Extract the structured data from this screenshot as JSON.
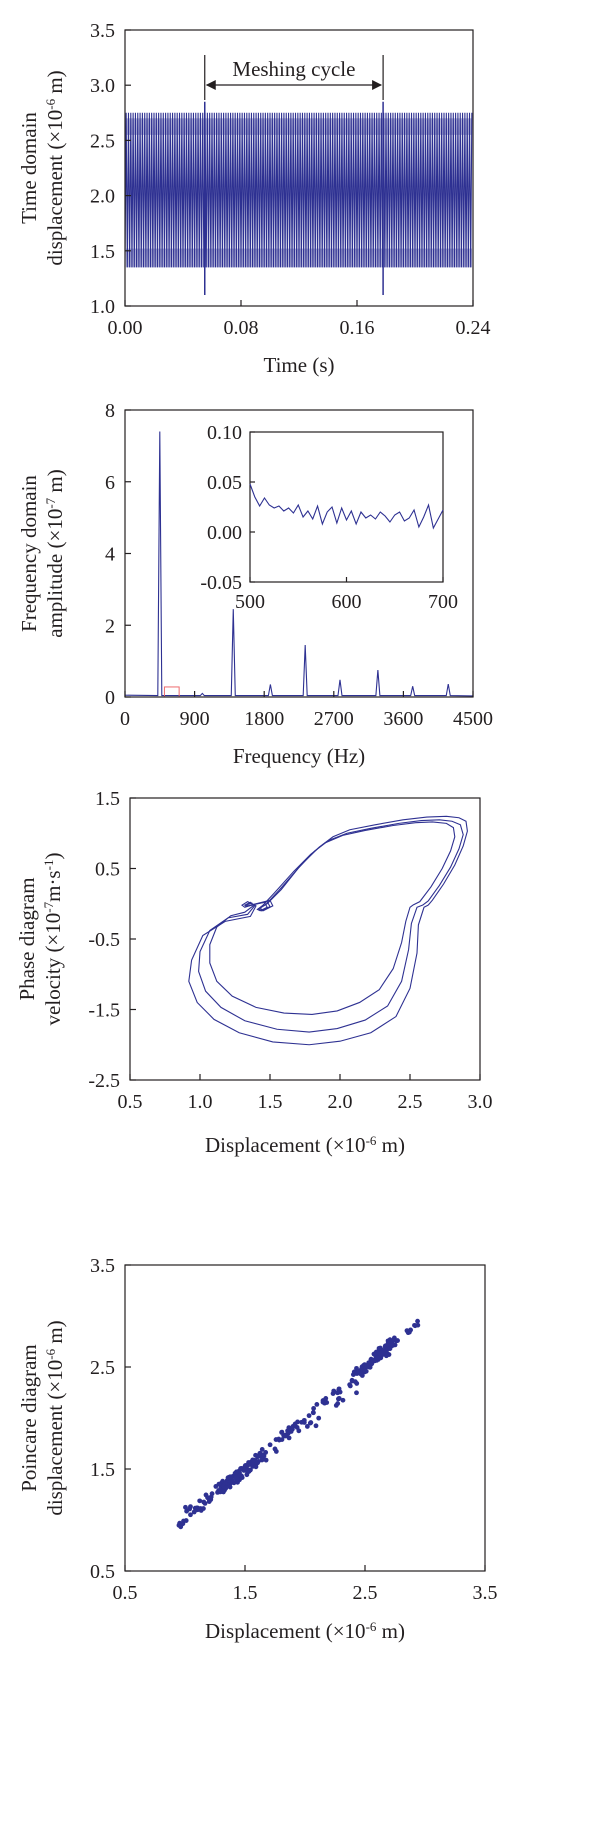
{
  "chart_data": [
    {
      "type": "line",
      "xlabel": "Time (s)",
      "ylabel_line1": "Time domain",
      "ylabel_line2": "displacement (×10",
      "ylabel_exp": "-6",
      "ylabel_tail": " m)",
      "xlim": [
        0.0,
        0.24
      ],
      "ylim": [
        1.0,
        3.5
      ],
      "xticks": [
        "0.00",
        "0.08",
        "0.16",
        "0.24"
      ],
      "yticks": [
        "1.0",
        "1.5",
        "2.0",
        "2.5",
        "3.0",
        "3.5"
      ],
      "annotation": "Meshing cycle",
      "annotation_range": [
        0.055,
        0.178
      ],
      "signal": {
        "min": 1.1,
        "max": 2.75,
        "bands": [
          1.35,
          1.52,
          2.55,
          2.7
        ],
        "oscillations": 150,
        "duration": 0.24
      }
    },
    {
      "type": "line",
      "xlabel": "Frequency (Hz)",
      "ylabel_line1": "Frequency domain",
      "ylabel_line2": "amplitude (×10",
      "ylabel_exp": "-7",
      "ylabel_tail": " m)",
      "xlim": [
        0,
        4500
      ],
      "ylim": [
        0,
        8
      ],
      "xticks": [
        "0",
        "900",
        "1800",
        "2700",
        "3600",
        "4500"
      ],
      "yticks": [
        "0",
        "2",
        "4",
        "6",
        "8"
      ],
      "peaks": [
        {
          "x": 450,
          "y": 7.4
        },
        {
          "x": 1000,
          "y": 0.1
        },
        {
          "x": 1400,
          "y": 2.45
        },
        {
          "x": 1880,
          "y": 0.35
        },
        {
          "x": 2330,
          "y": 1.45
        },
        {
          "x": 2780,
          "y": 0.48
        },
        {
          "x": 3270,
          "y": 0.75
        },
        {
          "x": 3720,
          "y": 0.3
        },
        {
          "x": 4180,
          "y": 0.36
        }
      ],
      "highlight_box": [
        510,
        700
      ],
      "inset": {
        "xlim": [
          500,
          700
        ],
        "ylim": [
          -0.05,
          0.1
        ],
        "xticks": [
          "500",
          "600",
          "700"
        ],
        "yticks": [
          "-0.05",
          "0.00",
          "0.05",
          "0.10"
        ],
        "x": [
          500,
          505,
          510,
          515,
          520,
          525,
          530,
          535,
          540,
          545,
          550,
          555,
          560,
          565,
          570,
          575,
          580,
          585,
          590,
          595,
          600,
          605,
          610,
          615,
          620,
          625,
          630,
          635,
          640,
          645,
          650,
          655,
          660,
          665,
          670,
          675,
          680,
          685,
          690,
          695,
          700
        ],
        "y": [
          0.048,
          0.035,
          0.026,
          0.034,
          0.027,
          0.024,
          0.026,
          0.021,
          0.024,
          0.019,
          0.027,
          0.015,
          0.021,
          0.013,
          0.026,
          0.008,
          0.02,
          0.025,
          0.009,
          0.024,
          0.012,
          0.021,
          0.008,
          0.02,
          0.014,
          0.017,
          0.013,
          0.02,
          0.016,
          0.01,
          0.017,
          0.02,
          0.011,
          0.014,
          0.022,
          0.005,
          0.015,
          0.027,
          0.004,
          0.013,
          0.022
        ]
      }
    },
    {
      "type": "line",
      "xlabel": "Displacement (×10",
      "xlabel_exp": "-6",
      "xlabel_tail": " m)",
      "ylabel_line1": "Phase diagram",
      "ylabel_line2": "velocity (×10",
      "ylabel_exp": "-7",
      "ylabel_tail": "m·s",
      "ylabel_exp2": "-1",
      "ylabel_tail2": ")",
      "xlim": [
        0.5,
        3.0
      ],
      "ylim": [
        -2.5,
        1.5
      ],
      "xticks": [
        "0.5",
        "1.0",
        "1.5",
        "2.0",
        "2.5",
        "3.0"
      ],
      "yticks": [
        "-2.5",
        "-1.5",
        "-0.5",
        "0.5",
        "1.5"
      ],
      "series": [
        {
          "x": [
            2.63,
            2.66,
            2.74,
            2.82,
            2.88,
            2.91,
            2.9,
            2.85,
            2.76,
            2.62,
            2.45,
            2.25,
            2.07,
            1.95,
            1.85,
            1.72,
            1.58,
            1.48,
            1.43,
            1.45,
            1.52,
            1.5,
            1.4,
            1.32,
            1.3,
            1.34,
            1.4,
            1.36,
            1.18,
            1.02,
            0.94,
            0.92,
            0.98,
            1.1,
            1.28,
            1.52,
            1.78,
            2.0,
            2.22,
            2.4,
            2.5,
            2.55,
            2.56,
            2.6,
            2.63
          ],
          "y": [
            -0.02,
            0.05,
            0.28,
            0.55,
            0.82,
            1.03,
            1.17,
            1.22,
            1.24,
            1.23,
            1.19,
            1.12,
            1.05,
            0.95,
            0.8,
            0.55,
            0.2,
            0.0,
            -0.06,
            -0.1,
            -0.03,
            0.05,
            0.0,
            -0.05,
            -0.02,
            0.03,
            -0.03,
            -0.18,
            -0.25,
            -0.45,
            -0.8,
            -1.1,
            -1.4,
            -1.64,
            -1.83,
            -1.96,
            -2.0,
            -1.95,
            -1.83,
            -1.6,
            -1.2,
            -0.7,
            -0.3,
            -0.05,
            -0.02
          ]
        },
        {
          "x": [
            2.59,
            2.63,
            2.71,
            2.79,
            2.85,
            2.88,
            2.86,
            2.8,
            2.71,
            2.58,
            2.42,
            2.22,
            2.05,
            1.92,
            1.82,
            1.7,
            1.56,
            1.47,
            1.42,
            1.44,
            1.5,
            1.48,
            1.39,
            1.33,
            1.32,
            1.36,
            1.39,
            1.34,
            1.2,
            1.07,
            1.0,
            0.99,
            1.04,
            1.15,
            1.32,
            1.55,
            1.78,
            1.98,
            2.18,
            2.34,
            2.44,
            2.49,
            2.51,
            2.55,
            2.59
          ],
          "y": [
            -0.02,
            0.04,
            0.26,
            0.52,
            0.78,
            0.98,
            1.12,
            1.17,
            1.19,
            1.18,
            1.14,
            1.07,
            1.0,
            0.9,
            0.75,
            0.5,
            0.18,
            -0.01,
            -0.07,
            -0.1,
            -0.04,
            0.03,
            -0.01,
            -0.04,
            -0.02,
            0.02,
            -0.03,
            -0.15,
            -0.2,
            -0.38,
            -0.68,
            -0.96,
            -1.24,
            -1.47,
            -1.66,
            -1.78,
            -1.82,
            -1.77,
            -1.65,
            -1.45,
            -1.1,
            -0.65,
            -0.28,
            -0.05,
            -0.02
          ]
        },
        {
          "x": [
            2.52,
            2.57,
            2.65,
            2.73,
            2.79,
            2.82,
            2.81,
            2.76,
            2.66,
            2.54,
            2.38,
            2.18,
            2.02,
            1.89,
            1.79,
            1.67,
            1.53,
            1.45,
            1.41,
            1.43,
            1.48,
            1.46,
            1.38,
            1.34,
            1.33,
            1.37,
            1.38,
            1.32,
            1.22,
            1.12,
            1.07,
            1.07,
            1.12,
            1.23,
            1.4,
            1.6,
            1.8,
            1.98,
            2.14,
            2.28,
            2.38,
            2.44,
            2.47,
            2.5,
            2.52
          ],
          "y": [
            -0.02,
            0.03,
            0.24,
            0.5,
            0.75,
            0.95,
            1.08,
            1.14,
            1.16,
            1.15,
            1.11,
            1.04,
            0.97,
            0.86,
            0.7,
            0.46,
            0.15,
            -0.02,
            -0.08,
            -0.1,
            -0.05,
            0.02,
            -0.01,
            -0.03,
            -0.02,
            0.01,
            -0.03,
            -0.12,
            -0.17,
            -0.33,
            -0.58,
            -0.84,
            -1.1,
            -1.31,
            -1.47,
            -1.55,
            -1.57,
            -1.52,
            -1.4,
            -1.22,
            -0.92,
            -0.55,
            -0.25,
            -0.05,
            -0.02
          ]
        }
      ]
    },
    {
      "type": "scatter",
      "xlabel": "Displacement (×10",
      "xlabel_exp": "-6",
      "xlabel_tail": " m)",
      "ylabel_line1": "Poincare diagram",
      "ylabel_line2": "displacement (×10",
      "ylabel_exp": "-6",
      "ylabel_tail": " m)",
      "xlim": [
        0.5,
        3.5
      ],
      "ylim": [
        0.5,
        3.5
      ],
      "xticks": [
        "0.5",
        "1.5",
        "2.5",
        "3.5"
      ],
      "yticks": [
        "0.5",
        "1.5",
        "2.5",
        "3.5"
      ],
      "clusters": [
        {
          "x0": 0.95,
          "y0": 0.95,
          "x1": 2.95,
          "y1": 2.95,
          "n": 110,
          "spread": 0.03
        },
        {
          "x0": 1.3,
          "y0": 1.3,
          "x1": 1.62,
          "y1": 1.62,
          "n": 80,
          "spread": 0.04
        },
        {
          "x0": 2.45,
          "y0": 2.45,
          "x1": 2.75,
          "y1": 2.75,
          "n": 80,
          "spread": 0.04
        },
        {
          "x0": 1.62,
          "y0": 1.58,
          "x1": 2.45,
          "y1": 2.35,
          "n": 28,
          "spread": 0.05
        },
        {
          "x0": 1.0,
          "y0": 1.05,
          "x1": 1.45,
          "y1": 1.45,
          "n": 18,
          "spread": 0.05
        }
      ]
    }
  ]
}
